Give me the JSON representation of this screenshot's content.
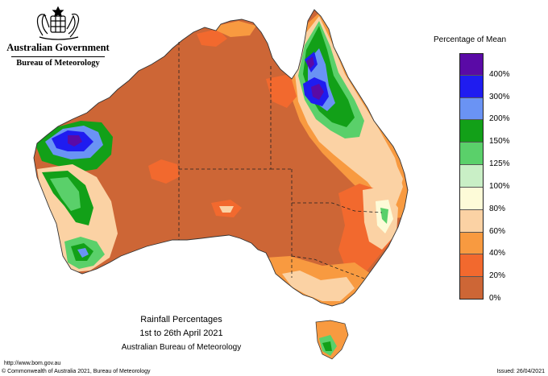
{
  "header": {
    "government": "Australian Government",
    "bureau": "Bureau of Meteorology"
  },
  "map": {
    "title": "Rainfall Percentages",
    "period": "1st to 26th April 2021",
    "source": "Australian Bureau of Meteorology"
  },
  "legend": {
    "title": "Percentage of Mean",
    "labels": [
      "400%",
      "300%",
      "200%",
      "150%",
      "125%",
      "100%",
      "80%",
      "60%",
      "40%",
      "20%",
      "0%"
    ],
    "colors": [
      "#5a0aa6",
      "#1f1cf0",
      "#6a93f4",
      "#12a018",
      "#5ad06a",
      "#c9efc6",
      "#fdfbd8",
      "#fbd2a4",
      "#f89a40",
      "#f2692e",
      "#cd6636"
    ]
  },
  "footer": {
    "url": "http://www.bom.gov.au",
    "copyright": "© Commonwealth of Australia 2021, Bureau of Meteorology",
    "issued": "Issued: 26/04/2021"
  }
}
